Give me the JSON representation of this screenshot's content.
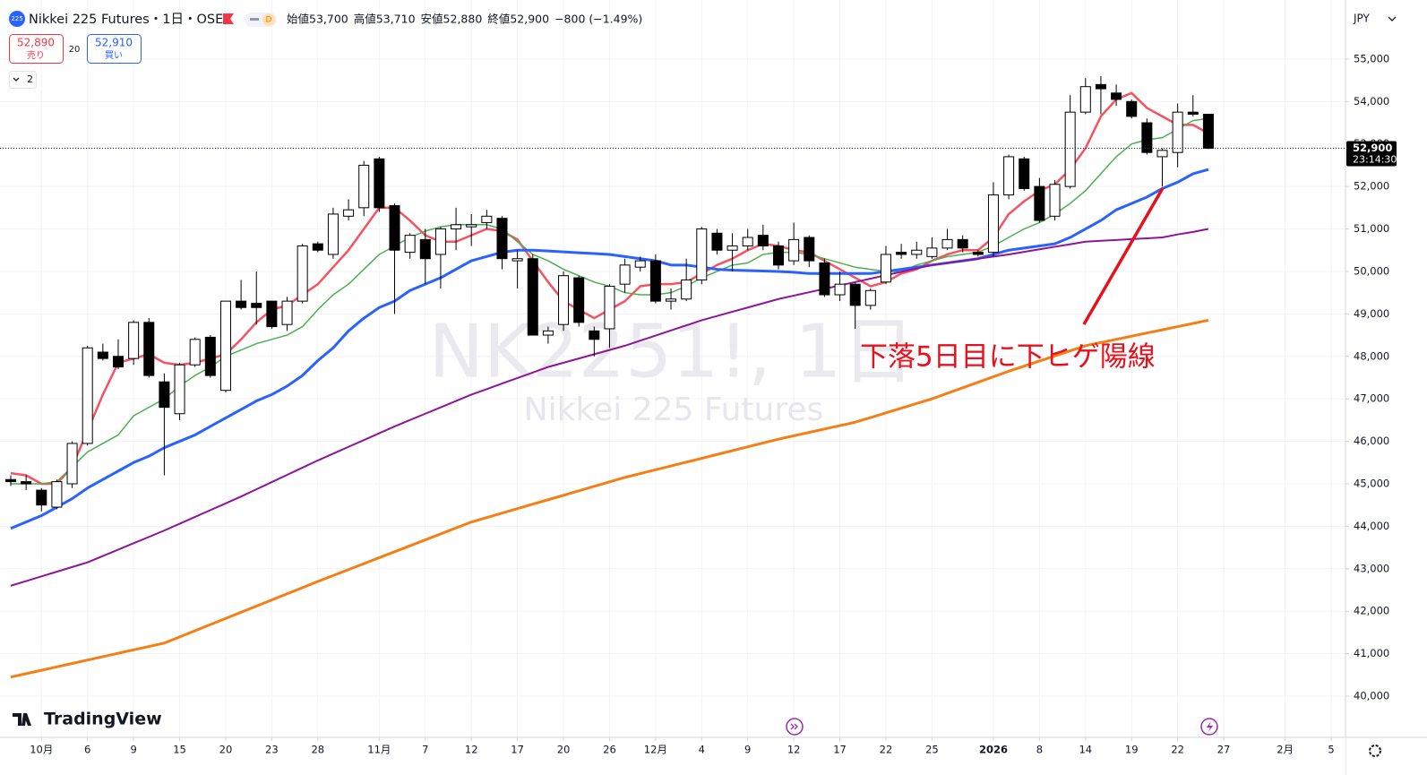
{
  "header": {
    "icon": "225",
    "symbol": "Nikkei 225 Futures・1日・OSE",
    "mode": "D",
    "ohlc": [
      {
        "label": "始値",
        "value": "53,700"
      },
      {
        "label": "高値",
        "value": "53,710"
      },
      {
        "label": "安値",
        "value": "52,880"
      },
      {
        "label": "終値",
        "value": "52,900"
      }
    ],
    "change": "−800 (−1.49%)",
    "sell": {
      "price": "52,890",
      "label": "売り"
    },
    "spread": "20",
    "buy": {
      "price": "52,910",
      "label": "買い"
    },
    "indicators": "2"
  },
  "currency": "JPY",
  "logo": "TradingView",
  "chart_data": {
    "type": "candlestick",
    "watermark": {
      "symbol": "NK2251!, 1日",
      "name": "Nikkei 225 Futures"
    },
    "annotation": "下落5日目に下ヒゲ陽線",
    "categories": [
      null,
      null,
      "10月",
      null,
      null,
      "6",
      null,
      null,
      "9",
      null,
      null,
      "15",
      null,
      null,
      "20",
      null,
      null,
      "23",
      null,
      null,
      "28",
      null,
      null,
      null,
      "11月",
      null,
      null,
      "7",
      null,
      null,
      "12",
      null,
      null,
      "17",
      null,
      null,
      "20",
      null,
      null,
      "26",
      null,
      null,
      "12月",
      null,
      null,
      "4",
      null,
      null,
      "9",
      null,
      null,
      "12",
      null,
      null,
      "17",
      null,
      null,
      "22",
      null,
      null,
      "25",
      null,
      null,
      null,
      "2026",
      null,
      null,
      "8",
      null,
      null,
      "14",
      null,
      null,
      "19",
      null,
      null,
      "22",
      null,
      null,
      "27",
      null,
      null,
      null,
      "2月",
      null,
      null,
      "5"
    ],
    "open": [
      45100,
      45050,
      44850,
      44450,
      45000,
      45950,
      48100,
      48000,
      47950,
      48800,
      47400,
      46650,
      47800,
      48450,
      47200,
      49300,
      49250,
      49300,
      48750,
      49300,
      50650,
      50400,
      51300,
      51500,
      52650,
      51550,
      50450,
      50750,
      50400,
      51000,
      51050,
      51150,
      51250,
      50250,
      50300,
      48500,
      48750,
      49850,
      48600,
      48650,
      49700,
      50100,
      50250,
      49300,
      49350,
      49800,
      50900,
      50500,
      50600,
      50850,
      50600,
      50250,
      50800,
      50200,
      49450,
      49700,
      49200,
      49750,
      50450,
      50400,
      50350,
      50550,
      50750,
      50450,
      50450,
      51800,
      52650,
      52000,
      51300,
      52000,
      53750,
      54400,
      54200,
      54000,
      53500,
      52700,
      52800,
      53750,
      53700,
      null,
      null,
      null,
      null,
      null,
      null,
      null,
      null
    ],
    "high": [
      45200,
      45200,
      44900,
      45100,
      46000,
      48250,
      48300,
      48400,
      48850,
      48900,
      47600,
      47850,
      48450,
      48500,
      49300,
      49800,
      50000,
      49300,
      49400,
      50650,
      50700,
      51500,
      51700,
      52600,
      52700,
      51600,
      50900,
      51000,
      51050,
      51500,
      51350,
      51450,
      51300,
      50500,
      50400,
      48700,
      50000,
      49900,
      48700,
      49700,
      50300,
      50350,
      50400,
      49600,
      50300,
      51050,
      51000,
      50900,
      51000,
      51100,
      50700,
      51150,
      50850,
      50300,
      50000,
      49750,
      49600,
      50600,
      50650,
      50700,
      50800,
      51000,
      50850,
      50500,
      52100,
      52750,
      52700,
      52200,
      52150,
      54150,
      54550,
      54600,
      54400,
      54050,
      53600,
      52900,
      53950,
      54150,
      53710,
      null,
      null,
      null,
      null,
      null,
      null,
      null,
      null
    ],
    "low": [
      44950,
      44850,
      44350,
      44400,
      44900,
      45900,
      47900,
      47700,
      47800,
      47500,
      45200,
      46500,
      47750,
      47500,
      47150,
      49100,
      48750,
      48650,
      48600,
      49250,
      50450,
      50300,
      51200,
      51300,
      51400,
      49000,
      50300,
      49700,
      49600,
      50500,
      50600,
      51000,
      50050,
      49600,
      48500,
      48300,
      48600,
      48700,
      48000,
      48200,
      49500,
      50000,
      49250,
      49100,
      49300,
      49700,
      50400,
      50000,
      50500,
      50500,
      50050,
      50150,
      50100,
      49400,
      49300,
      48650,
      49100,
      49700,
      50300,
      50300,
      50300,
      50500,
      50450,
      50350,
      50350,
      51700,
      51900,
      51150,
      51200,
      51950,
      53700,
      53700,
      53900,
      53600,
      52750,
      52000,
      52450,
      53650,
      52880,
      null,
      null,
      null,
      null,
      null,
      null,
      null,
      null
    ],
    "close": [
      45050,
      45000,
      44500,
      45050,
      45950,
      48200,
      47950,
      47750,
      48800,
      47550,
      46800,
      47800,
      48400,
      47550,
      49300,
      49150,
      49150,
      48700,
      49300,
      50600,
      50500,
      51350,
      51450,
      52500,
      51500,
      50500,
      50850,
      50300,
      51000,
      51100,
      51100,
      51300,
      50300,
      50300,
      48500,
      48600,
      49900,
      48800,
      48400,
      49650,
      50150,
      50250,
      49300,
      49350,
      49800,
      51000,
      50500,
      50600,
      50800,
      50600,
      50150,
      50750,
      50250,
      49450,
      49700,
      49200,
      49550,
      50400,
      50400,
      50500,
      50550,
      50750,
      50550,
      50400,
      51800,
      52700,
      51950,
      51200,
      52050,
      53750,
      54350,
      54300,
      54050,
      53650,
      52800,
      52850,
      53750,
      53700,
      52900,
      null,
      null,
      null,
      null,
      null,
      null,
      null,
      null
    ],
    "up_color": "#ffffff",
    "down_color": "#000000",
    "series": [
      {
        "color": "#f7525f",
        "width": 2.5,
        "values": [
          45250,
          45200,
          45000,
          45000,
          45400,
          46250,
          47100,
          47850,
          47950,
          48050,
          47850,
          47800,
          47850,
          47950,
          48050,
          48400,
          48800,
          49100,
          49200,
          49450,
          49700,
          50100,
          50500,
          51000,
          51500,
          51500,
          51200,
          50850,
          50700,
          50700,
          50850,
          51000,
          50950,
          50750,
          50250,
          49750,
          49300,
          49100,
          48900,
          49100,
          49300,
          49650,
          49700,
          49700,
          49750,
          49950,
          50150,
          50300,
          50500,
          50650,
          50600,
          50500,
          50450,
          50250,
          50050,
          49850,
          49650,
          49750,
          49950,
          50050,
          50250,
          50400,
          50500,
          50500,
          50800,
          51350,
          51650,
          51900,
          52050,
          52400,
          52900,
          53650,
          54050,
          54200,
          53850,
          53650,
          53450,
          53450,
          53250,
          null,
          null,
          null,
          null,
          null,
          null,
          null,
          null
        ]
      },
      {
        "color": "#4caf50",
        "width": 1.5,
        "values": [
          45000,
          45000,
          45000,
          45050,
          45400,
          45750,
          45950,
          46150,
          46600,
          46800,
          47000,
          47300,
          47550,
          47750,
          48000,
          48150,
          48300,
          48400,
          48500,
          48700,
          49100,
          49450,
          49700,
          50050,
          50400,
          50600,
          50800,
          50950,
          51050,
          51100,
          51100,
          51100,
          51000,
          50700,
          50400,
          50250,
          50050,
          49900,
          49750,
          49650,
          49500,
          49450,
          49450,
          49500,
          49650,
          49850,
          50000,
          50150,
          50200,
          50400,
          50450,
          50450,
          50400,
          50300,
          50200,
          50100,
          50050,
          50000,
          50000,
          50150,
          50250,
          50350,
          50400,
          50450,
          50600,
          50800,
          51000,
          51150,
          51350,
          51600,
          51900,
          52300,
          52700,
          53000,
          53100,
          53150,
          53350,
          53550,
          53600,
          null,
          null,
          null,
          null,
          null,
          null,
          null,
          null
        ]
      },
      {
        "color": "#2962ff",
        "width": 3,
        "values": [
          43950,
          44100,
          44250,
          44450,
          44650,
          44900,
          45100,
          45300,
          45500,
          45650,
          45850,
          46000,
          46150,
          46350,
          46550,
          46750,
          46950,
          47100,
          47300,
          47550,
          47900,
          48200,
          48600,
          48900,
          49150,
          49300,
          49550,
          49700,
          49850,
          50050,
          50250,
          50350,
          50450,
          50500,
          50500,
          50480,
          50460,
          50440,
          50420,
          50400,
          50350,
          50300,
          50250,
          50150,
          50150,
          50100,
          50050,
          50030,
          50020,
          50010,
          50000,
          49980,
          49950,
          49950,
          49950,
          49950,
          49950,
          50000,
          50050,
          50100,
          50150,
          50200,
          50250,
          50300,
          50400,
          50500,
          50550,
          50600,
          50650,
          50800,
          51000,
          51200,
          51450,
          51600,
          51750,
          51950,
          52100,
          52300,
          52400,
          null,
          null,
          null,
          null,
          null,
          null,
          null,
          null
        ]
      },
      {
        "color": "#8e1599",
        "width": 2,
        "values": [
          42600,
          42710,
          42820,
          42930,
          43040,
          43150,
          43300,
          43450,
          43600,
          43750,
          43900,
          44060,
          44220,
          44380,
          44540,
          44700,
          44870,
          45040,
          45210,
          45380,
          45550,
          45710,
          45870,
          46030,
          46190,
          46350,
          46500,
          46650,
          46800,
          46950,
          47100,
          47230,
          47360,
          47490,
          47620,
          47750,
          47850,
          47950,
          48050,
          48150,
          48250,
          48370,
          48490,
          48610,
          48730,
          48850,
          48950,
          49050,
          49150,
          49250,
          49350,
          49430,
          49510,
          49590,
          49670,
          49750,
          49830,
          49910,
          49990,
          50070,
          50150,
          50200,
          50250,
          50300,
          50350,
          50400,
          50460,
          50520,
          50580,
          50640,
          50700,
          50720,
          50740,
          50760,
          50780,
          50800,
          50870,
          50930,
          51000,
          null,
          null,
          null,
          null,
          null,
          null,
          null,
          null
        ]
      },
      {
        "color": "#f57f17",
        "width": 3,
        "values": [
          40450,
          40530,
          40610,
          40690,
          40770,
          40850,
          40930,
          41010,
          41090,
          41170,
          41250,
          41395,
          41540,
          41685,
          41830,
          41975,
          42120,
          42265,
          42410,
          42555,
          42700,
          42840,
          42980,
          43120,
          43260,
          43400,
          43540,
          43680,
          43820,
          43960,
          44100,
          44205,
          44310,
          44415,
          44520,
          44625,
          44730,
          44835,
          44940,
          45045,
          45150,
          45240,
          45330,
          45420,
          45510,
          45600,
          45690,
          45780,
          45870,
          45960,
          46050,
          46130,
          46210,
          46290,
          46370,
          46450,
          46560,
          46670,
          46780,
          46890,
          47000,
          47130,
          47260,
          47390,
          47520,
          47650,
          47770,
          47890,
          48010,
          48130,
          48250,
          48325,
          48400,
          48475,
          48550,
          48625,
          48700,
          48775,
          48850,
          null,
          null,
          null,
          null,
          null,
          null,
          null,
          null
        ]
      }
    ],
    "ylim": [
      39030,
      56390
    ],
    "yticks": [
      {
        "value": 40000,
        "label": "40,000"
      },
      {
        "value": 41000,
        "label": "41,000"
      },
      {
        "value": 42000,
        "label": "42,000"
      },
      {
        "value": 43000,
        "label": "43,000"
      },
      {
        "value": 44000,
        "label": "44,000"
      },
      {
        "value": 45000,
        "label": "45,000"
      },
      {
        "value": 46000,
        "label": "46,000"
      },
      {
        "value": 47000,
        "label": "47,000"
      },
      {
        "value": 48000,
        "label": "48,000"
      },
      {
        "value": 49000,
        "label": "49,000"
      },
      {
        "value": 50000,
        "label": "50,000"
      },
      {
        "value": 51000,
        "label": "51,000"
      },
      {
        "value": 52000,
        "label": "52,000"
      },
      {
        "value": 53000,
        "label": "53,000"
      },
      {
        "value": 54000,
        "label": "54,000"
      },
      {
        "value": 55000,
        "label": "55,000"
      }
    ],
    "last_price": {
      "value": 52900,
      "label": "52,900",
      "countdown": "23:14:30"
    },
    "grid": true
  }
}
